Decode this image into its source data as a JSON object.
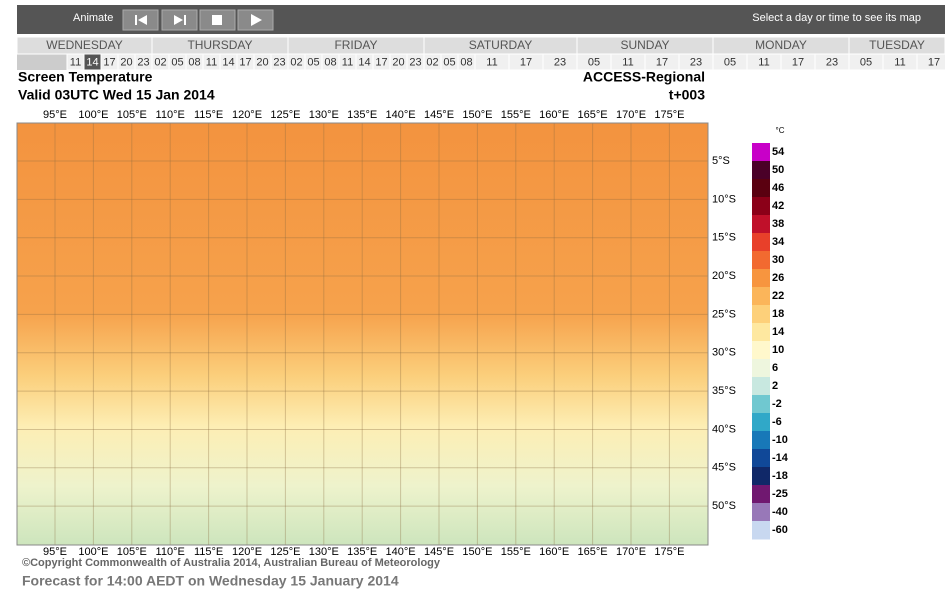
{
  "toolbar": {
    "animate": "Animate",
    "hint": "Select a day or time to see its map"
  },
  "days": [
    {
      "name": "WEDNESDAY",
      "hours": [
        "11",
        "14",
        "17",
        "20",
        "23"
      ]
    },
    {
      "name": "THURSDAY",
      "hours": [
        "02",
        "05",
        "08",
        "11",
        "14",
        "17",
        "20",
        "23"
      ]
    },
    {
      "name": "FRIDAY",
      "hours": [
        "02",
        "05",
        "08",
        "11",
        "14",
        "17",
        "20",
        "23"
      ]
    },
    {
      "name": "SATURDAY",
      "hours": [
        "02",
        "05",
        "08",
        "11",
        "17",
        "23"
      ]
    },
    {
      "name": "SUNDAY",
      "hours": [
        "05",
        "11",
        "17",
        "23"
      ]
    },
    {
      "name": "MONDAY",
      "hours": [
        "05",
        "11",
        "17",
        "23"
      ]
    },
    {
      "name": "TUESDAY",
      "hours": [
        "05",
        "11",
        "17"
      ]
    }
  ],
  "selected": {
    "day": 0,
    "hour": 1
  },
  "map": {
    "title": "Screen Temperature",
    "model": "ACCESS-Regional",
    "valid": "Valid 03UTC Wed 15 Jan 2014",
    "step": "t+003",
    "longitudes": [
      "95°E",
      "100°E",
      "105°E",
      "110°E",
      "115°E",
      "120°E",
      "125°E",
      "130°E",
      "135°E",
      "140°E",
      "145°E",
      "150°E",
      "155°E",
      "160°E",
      "165°E",
      "170°E",
      "175°E"
    ],
    "latitudes": [
      "5°S",
      "10°S",
      "15°S",
      "20°S",
      "25°S",
      "30°S",
      "35°S",
      "40°S",
      "45°S",
      "50°S"
    ]
  },
  "legend": {
    "unit": "°C",
    "labels": [
      54,
      50,
      46,
      42,
      38,
      34,
      30,
      26,
      22,
      18,
      14,
      10,
      6,
      2,
      -2,
      -6,
      -10,
      -14,
      -18,
      -25,
      -40,
      -60
    ],
    "colors": [
      "#c800c8",
      "#4a0028",
      "#5a0010",
      "#8b0018",
      "#c0102a",
      "#e8402a",
      "#f26a30",
      "#f7953f",
      "#fbb55a",
      "#fdd07a",
      "#fee8a0",
      "#fff8cc",
      "#eef6de",
      "#c8e8e0",
      "#70c8d0",
      "#30a8c8",
      "#1878b8",
      "#104898",
      "#102868",
      "#701870",
      "#9878b8",
      "#c8d8f0"
    ]
  },
  "copyright": "©Copyright Commonwealth of Australia 2014, Australian Bureau of Meteorology",
  "forecast": "Forecast for 14:00 AEDT on Wednesday 15 January 2014"
}
